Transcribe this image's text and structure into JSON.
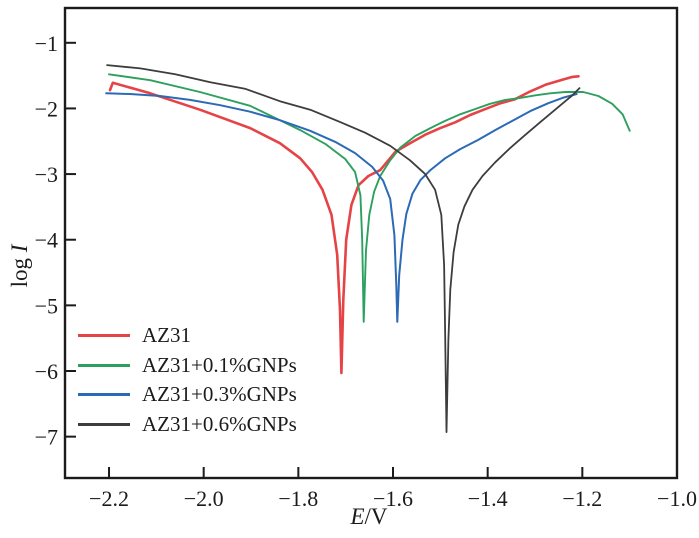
{
  "figure": {
    "background": "#ffffff",
    "axis_color": "#1b1b1b",
    "text_color": "#1b1b1b"
  },
  "chart_data": {
    "type": "line",
    "title": "",
    "xlabel": "E/V",
    "ylabel": "log I",
    "xlim": [
      -2.293,
      -1.0
    ],
    "ylim": [
      -7.63,
      -0.47
    ],
    "grid": false,
    "legend_position": "lower-left",
    "x_ticks": {
      "values": [
        -2.2,
        -2.0,
        -1.8,
        -1.6,
        -1.4,
        -1.2,
        -1.0
      ],
      "labels": [
        "−2.2",
        "−2.0",
        "−1.8",
        "−1.6",
        "−1.4",
        "−1.2",
        "−1.0"
      ]
    },
    "y_ticks": {
      "values": [
        -1,
        -2,
        -3,
        -4,
        -5,
        -6,
        -7
      ],
      "labels": [
        "−1",
        "−2",
        "−3",
        "−4",
        "−5",
        "−6",
        "−7"
      ]
    },
    "series": [
      {
        "name": "AZ31",
        "color": "#e54345",
        "points": [
          [
            -2.198,
            -1.72
          ],
          [
            -2.192,
            -1.61
          ],
          [
            -2.113,
            -1.77
          ],
          [
            -2.008,
            -2.02
          ],
          [
            -1.902,
            -2.3
          ],
          [
            -1.839,
            -2.53
          ],
          [
            -1.796,
            -2.76
          ],
          [
            -1.771,
            -2.97
          ],
          [
            -1.749,
            -3.24
          ],
          [
            -1.73,
            -3.62
          ],
          [
            -1.718,
            -4.23
          ],
          [
            -1.712,
            -5.07
          ],
          [
            -1.709,
            -6.03
          ],
          [
            -1.705,
            -4.92
          ],
          [
            -1.699,
            -4.0
          ],
          [
            -1.688,
            -3.47
          ],
          [
            -1.673,
            -3.17
          ],
          [
            -1.652,
            -3.03
          ],
          [
            -1.627,
            -2.94
          ],
          [
            -1.595,
            -2.66
          ],
          [
            -1.564,
            -2.53
          ],
          [
            -1.532,
            -2.4
          ],
          [
            -1.5,
            -2.3
          ],
          [
            -1.468,
            -2.21
          ],
          [
            -1.437,
            -2.1
          ],
          [
            -1.405,
            -2.01
          ],
          [
            -1.373,
            -1.92
          ],
          [
            -1.342,
            -1.86
          ],
          [
            -1.31,
            -1.74
          ],
          [
            -1.278,
            -1.64
          ],
          [
            -1.246,
            -1.57
          ],
          [
            -1.221,
            -1.52
          ],
          [
            -1.208,
            -1.51
          ]
        ]
      },
      {
        "name": "AZ31+0.1%GNPs",
        "color": "#2da05f",
        "points": [
          [
            -2.2,
            -1.48
          ],
          [
            -2.113,
            -1.57
          ],
          [
            -2.008,
            -1.75
          ],
          [
            -1.902,
            -1.96
          ],
          [
            -1.796,
            -2.33
          ],
          [
            -1.743,
            -2.54
          ],
          [
            -1.701,
            -2.77
          ],
          [
            -1.68,
            -2.97
          ],
          [
            -1.669,
            -3.32
          ],
          [
            -1.665,
            -4.0
          ],
          [
            -1.662,
            -5.25
          ],
          [
            -1.657,
            -4.16
          ],
          [
            -1.65,
            -3.62
          ],
          [
            -1.64,
            -3.27
          ],
          [
            -1.627,
            -3.03
          ],
          [
            -1.606,
            -2.79
          ],
          [
            -1.585,
            -2.6
          ],
          [
            -1.553,
            -2.42
          ],
          [
            -1.521,
            -2.3
          ],
          [
            -1.49,
            -2.19
          ],
          [
            -1.458,
            -2.09
          ],
          [
            -1.427,
            -2.01
          ],
          [
            -1.395,
            -1.93
          ],
          [
            -1.363,
            -1.87
          ],
          [
            -1.331,
            -1.84
          ],
          [
            -1.299,
            -1.8
          ],
          [
            -1.268,
            -1.77
          ],
          [
            -1.236,
            -1.75
          ],
          [
            -1.198,
            -1.75
          ],
          [
            -1.166,
            -1.81
          ],
          [
            -1.137,
            -1.93
          ],
          [
            -1.115,
            -2.09
          ],
          [
            -1.1,
            -2.34
          ]
        ]
      },
      {
        "name": "AZ31+0.3%GNPs",
        "color": "#2c6ab5",
        "points": [
          [
            -2.206,
            -1.77
          ],
          [
            -2.156,
            -1.78
          ],
          [
            -2.092,
            -1.81
          ],
          [
            -2.029,
            -1.87
          ],
          [
            -1.965,
            -1.95
          ],
          [
            -1.902,
            -2.05
          ],
          [
            -1.839,
            -2.18
          ],
          [
            -1.775,
            -2.34
          ],
          [
            -1.722,
            -2.51
          ],
          [
            -1.68,
            -2.68
          ],
          [
            -1.644,
            -2.89
          ],
          [
            -1.621,
            -3.1
          ],
          [
            -1.606,
            -3.38
          ],
          [
            -1.597,
            -3.93
          ],
          [
            -1.593,
            -4.69
          ],
          [
            -1.591,
            -5.25
          ],
          [
            -1.587,
            -4.54
          ],
          [
            -1.58,
            -4.0
          ],
          [
            -1.572,
            -3.61
          ],
          [
            -1.559,
            -3.3
          ],
          [
            -1.542,
            -3.09
          ],
          [
            -1.521,
            -2.94
          ],
          [
            -1.49,
            -2.76
          ],
          [
            -1.458,
            -2.62
          ],
          [
            -1.42,
            -2.48
          ],
          [
            -1.384,
            -2.33
          ],
          [
            -1.348,
            -2.19
          ],
          [
            -1.31,
            -2.04
          ],
          [
            -1.272,
            -1.92
          ],
          [
            -1.242,
            -1.84
          ],
          [
            -1.212,
            -1.78
          ]
        ]
      },
      {
        "name": "AZ31+0.6%GNPs",
        "color": "#3d3d3d",
        "points": [
          [
            -2.204,
            -1.34
          ],
          [
            -2.134,
            -1.39
          ],
          [
            -2.06,
            -1.48
          ],
          [
            -1.986,
            -1.6
          ],
          [
            -1.913,
            -1.7
          ],
          [
            -1.839,
            -1.89
          ],
          [
            -1.775,
            -2.02
          ],
          [
            -1.711,
            -2.21
          ],
          [
            -1.659,
            -2.37
          ],
          [
            -1.606,
            -2.57
          ],
          [
            -1.564,
            -2.79
          ],
          [
            -1.532,
            -3.0
          ],
          [
            -1.511,
            -3.24
          ],
          [
            -1.498,
            -3.62
          ],
          [
            -1.492,
            -4.38
          ],
          [
            -1.49,
            -5.37
          ],
          [
            -1.487,
            -6.93
          ],
          [
            -1.483,
            -5.52
          ],
          [
            -1.479,
            -4.76
          ],
          [
            -1.472,
            -4.19
          ],
          [
            -1.462,
            -3.77
          ],
          [
            -1.449,
            -3.49
          ],
          [
            -1.432,
            -3.24
          ],
          [
            -1.411,
            -3.03
          ],
          [
            -1.384,
            -2.82
          ],
          [
            -1.352,
            -2.6
          ],
          [
            -1.32,
            -2.4
          ],
          [
            -1.289,
            -2.21
          ],
          [
            -1.261,
            -2.04
          ],
          [
            -1.236,
            -1.89
          ],
          [
            -1.221,
            -1.8
          ],
          [
            -1.206,
            -1.69
          ]
        ]
      }
    ]
  }
}
